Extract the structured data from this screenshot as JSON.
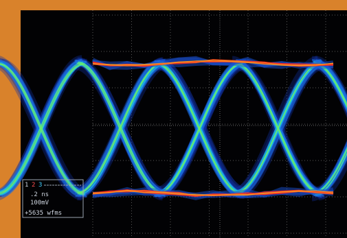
{
  "channels": [
    "1",
    "2",
    "3"
  ],
  "timebase": ".2 ns",
  "scale": "100mV",
  "waveforms": "+5635 wfms"
}
